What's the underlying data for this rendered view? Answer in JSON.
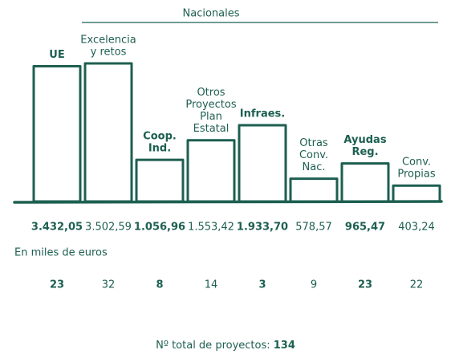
{
  "chart_data": {
    "type": "bar",
    "group_label": "Nacionales",
    "unit_note": "En miles de euros",
    "categories": [
      [
        "UE"
      ],
      [
        "Excelencia",
        "y retos"
      ],
      [
        "Coop.",
        "Ind."
      ],
      [
        "Otros",
        "Proyectos",
        "Plan",
        "Estatal"
      ],
      [
        "Infraes."
      ],
      [
        "Otras",
        "Conv.",
        "Nac."
      ],
      [
        "Ayudas",
        "Reg."
      ],
      [
        "Conv.",
        "Propias"
      ]
    ],
    "values": [
      3432.05,
      3502.59,
      1056.96,
      1553.42,
      1933.7,
      578.57,
      965.47,
      403.24
    ],
    "value_labels": [
      "3.432,05",
      "3.502,59",
      "1.056,96",
      "1.553,42",
      "1.933,70",
      "578,57",
      "965,47",
      "403,24"
    ],
    "projects": [
      23,
      32,
      8,
      14,
      3,
      9,
      23,
      22
    ],
    "bold": [
      true,
      false,
      true,
      false,
      true,
      false,
      true,
      false
    ],
    "color": "#1d5f50",
    "total_label": "Nº total de proyectos:",
    "total": 134
  }
}
